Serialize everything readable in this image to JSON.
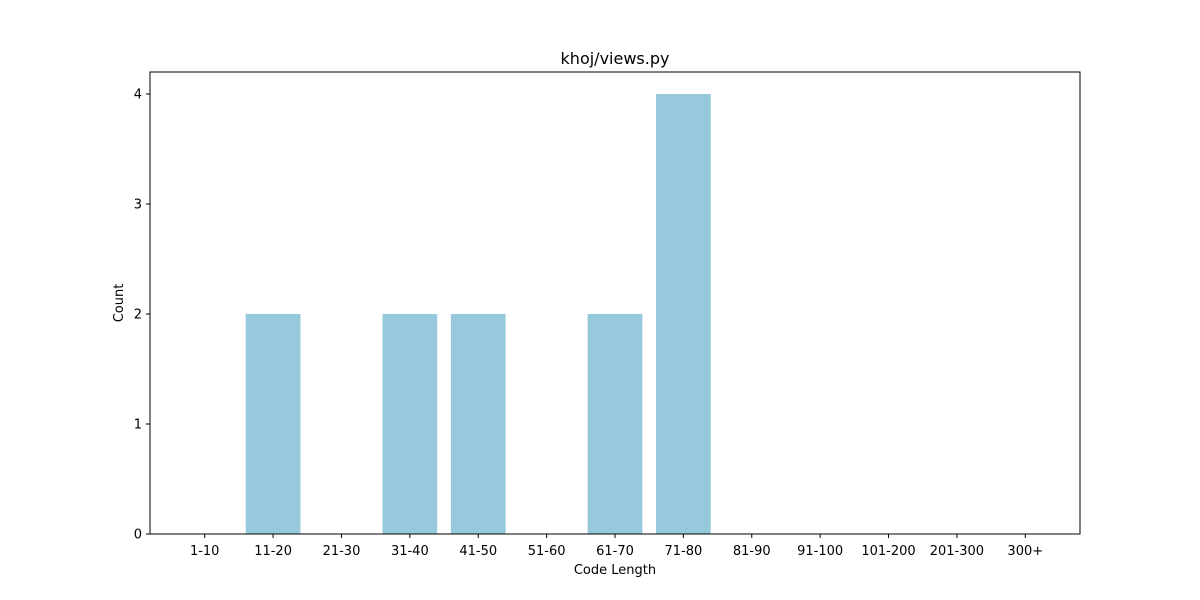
{
  "chart_data": {
    "type": "bar",
    "title": "khoj/views.py",
    "xlabel": "Code Length",
    "ylabel": "Count",
    "categories": [
      "1-10",
      "11-20",
      "21-30",
      "31-40",
      "41-50",
      "51-60",
      "61-70",
      "71-80",
      "81-90",
      "91-100",
      "101-200",
      "201-300",
      "300+"
    ],
    "values": [
      0,
      2,
      0,
      2,
      2,
      0,
      2,
      4,
      0,
      0,
      0,
      0,
      0
    ],
    "ylim": [
      0,
      4.2
    ],
    "yticks": [
      "0",
      "1",
      "2",
      "3",
      "4"
    ],
    "grid": false,
    "bar_color": "#96c9dc"
  }
}
